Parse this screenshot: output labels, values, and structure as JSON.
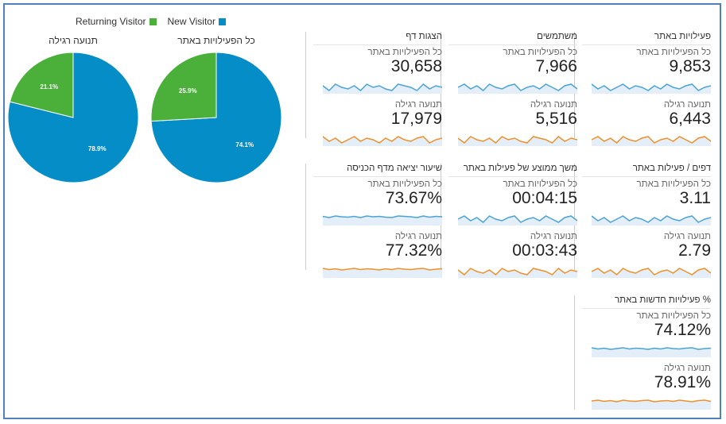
{
  "legend": {
    "returning_label": "Returning Visitor",
    "new_label": "New Visitor",
    "returning_color": "#4ab03a",
    "new_color": "#058dc7"
  },
  "pies": [
    {
      "title": "תנועה רגילה",
      "new_pct": 78.9,
      "returning_pct": 21.1,
      "new_label": "78.9%",
      "returning_label": "21.1%"
    },
    {
      "title": "כל הפעילויות באתר",
      "new_pct": 74.1,
      "returning_pct": 25.9,
      "new_label": "74.1%",
      "returning_label": "25.9%"
    }
  ],
  "cards": [
    {
      "metric": "פעילויות באתר",
      "all_label": "כל הפעילויות באתר",
      "all_value": "9,853",
      "reg_label": "תנועה רגילה",
      "reg_value": "6,443"
    },
    {
      "metric": "משתמשים",
      "all_label": "כל הפעילויות באתר",
      "all_value": "7,966",
      "reg_label": "תנועה רגילה",
      "reg_value": "5,516"
    },
    {
      "metric": "הצגות דף",
      "all_label": "כל הפעילויות באתר",
      "all_value": "30,658",
      "reg_label": "תנועה רגילה",
      "reg_value": "17,979"
    },
    {
      "metric": "דפים / פעילות באתר",
      "all_label": "כל הפעילויות באתר",
      "all_value": "3.11",
      "reg_label": "תנועה רגילה",
      "reg_value": "2.79"
    },
    {
      "metric": "משך ממוצע של פעילות באתר",
      "all_label": "כל הפעילויות באתר",
      "all_value": "00:04:15",
      "reg_label": "תנועה רגילה",
      "reg_value": "00:03:43"
    },
    {
      "metric": "שיעור יציאה מדף הכניסה",
      "all_label": "כל הפעילויות באתר",
      "all_value": "73.67%",
      "reg_label": "תנועה רגילה",
      "reg_value": "77.32%"
    },
    {
      "metric": "% פעילויות חדשות באתר",
      "all_label": "כל הפעילויות באתר",
      "all_value": "74.12%",
      "reg_label": "תנועה רגילה",
      "reg_value": "78.91%"
    }
  ],
  "spark_colors": {
    "all": "#4aa3d6",
    "regular": "#f0902a",
    "fill": "#e3eef8"
  }
}
